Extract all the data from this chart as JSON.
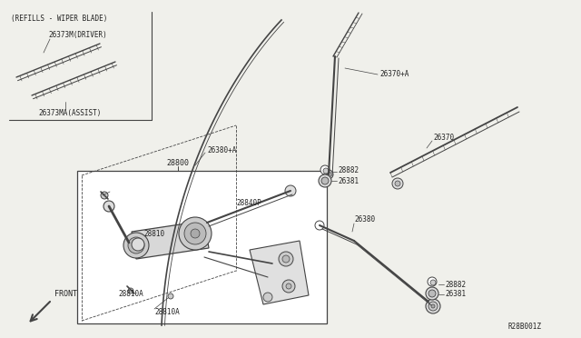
{
  "bg_color": "#f0f0eb",
  "line_color": "#444444",
  "text_color": "#222222",
  "title_ref": "R28B001Z",
  "labels": {
    "refills_box_title": "(REFILLS - WIPER BLADE)",
    "driver_label": "26373M(DRIVER)",
    "assist_label": "26373MA(ASSIST)",
    "part_26370pA": "26370+A",
    "part_26380pA": "26380+A",
    "part_26370": "26370",
    "part_26380": "26380",
    "part_28882_1": "28882",
    "part_26381_1": "26381",
    "part_28882_2": "28882",
    "part_26381_2": "26381",
    "part_28800": "28800",
    "part_28810": "28810",
    "part_28840P": "28840P",
    "part_28810A_1": "28810A",
    "part_28810A_2": "28810A",
    "front_label": "FRONT"
  }
}
